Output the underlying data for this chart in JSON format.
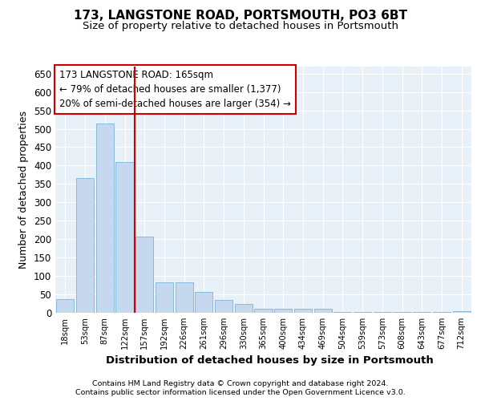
{
  "title1": "173, LANGSTONE ROAD, PORTSMOUTH, PO3 6BT",
  "title2": "Size of property relative to detached houses in Portsmouth",
  "xlabel": "Distribution of detached houses by size in Portsmouth",
  "ylabel": "Number of detached properties",
  "categories": [
    "18sqm",
    "53sqm",
    "87sqm",
    "122sqm",
    "157sqm",
    "192sqm",
    "226sqm",
    "261sqm",
    "296sqm",
    "330sqm",
    "365sqm",
    "400sqm",
    "434sqm",
    "469sqm",
    "504sqm",
    "539sqm",
    "573sqm",
    "608sqm",
    "643sqm",
    "677sqm",
    "712sqm"
  ],
  "values": [
    37,
    365,
    515,
    410,
    207,
    83,
    83,
    57,
    35,
    23,
    11,
    10,
    10,
    10,
    2,
    2,
    2,
    2,
    2,
    2,
    5
  ],
  "bar_color": "#c5d8ed",
  "bar_edge_color": "#7ab4d8",
  "vline_color": "#cc0000",
  "vline_x": 4.5,
  "annotation_line1": "173 LANGSTONE ROAD: 165sqm",
  "annotation_line2": "← 79% of detached houses are smaller (1,377)",
  "annotation_line3": "20% of semi-detached houses are larger (354) →",
  "annotation_box_color": "#ffffff",
  "annotation_box_edge": "#cc0000",
  "footer1": "Contains HM Land Registry data © Crown copyright and database right 2024.",
  "footer2": "Contains public sector information licensed under the Open Government Licence v3.0.",
  "background_color": "#e8f0f8",
  "ylim": [
    0,
    670
  ],
  "yticks": [
    0,
    50,
    100,
    150,
    200,
    250,
    300,
    350,
    400,
    450,
    500,
    550,
    600,
    650
  ]
}
